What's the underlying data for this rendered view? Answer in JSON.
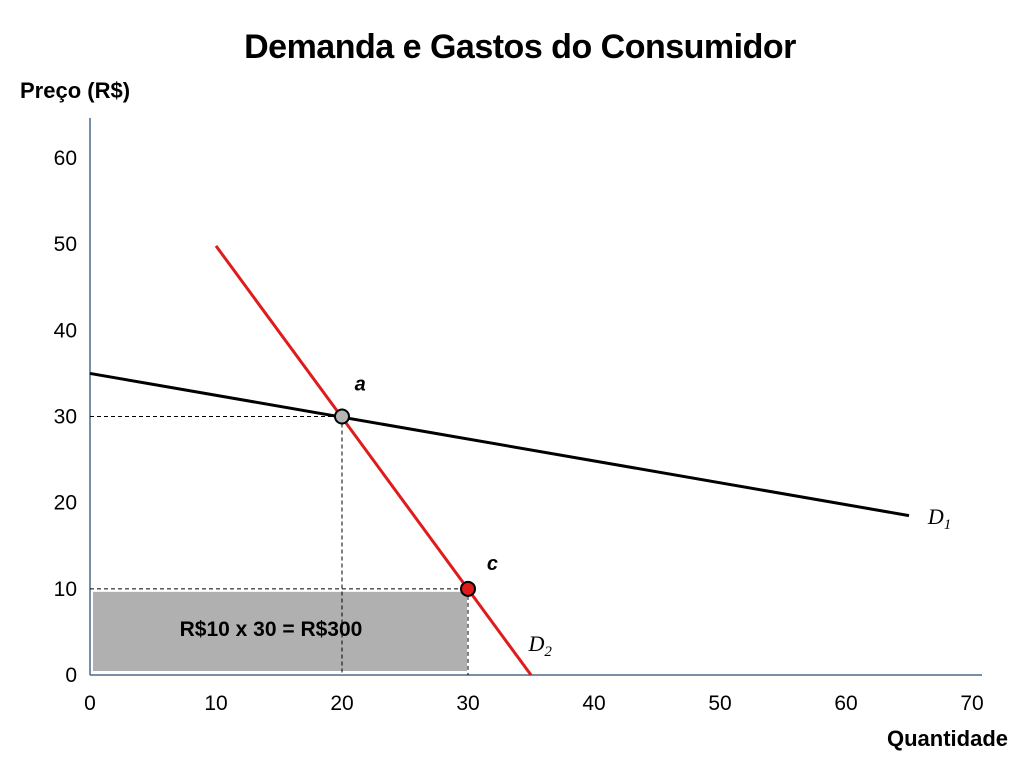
{
  "chart_data": {
    "type": "line",
    "title": "Demanda e Gastos do Consumidor",
    "ylabel": "Preço (R$)",
    "xlabel": "Quantidade",
    "xlim": [
      0,
      70
    ],
    "ylim": [
      0,
      62
    ],
    "x_ticks": [
      0,
      10,
      20,
      30,
      40,
      50,
      60,
      70
    ],
    "y_ticks": [
      0,
      10,
      20,
      30,
      40,
      50,
      60
    ],
    "grid": false,
    "series": [
      {
        "name": "D",
        "sub": "1",
        "color": "#000000",
        "points": [
          {
            "x": 0,
            "y": 35
          },
          {
            "x": 65,
            "y": 18.5
          }
        ],
        "label_at": {
          "x": 66.5,
          "y": 17.5
        }
      },
      {
        "name": "D",
        "sub": "2",
        "color": "#e01b1b",
        "points": [
          {
            "x": 10,
            "y": 49.8
          },
          {
            "x": 35,
            "y": 0
          }
        ],
        "label_at": {
          "x": 34.8,
          "y": 2.8
        }
      }
    ],
    "points": [
      {
        "label": "a",
        "x": 20,
        "y": 30,
        "fill": "#b5b5b5",
        "label_offset": {
          "x": 1.0,
          "y": 3.0
        }
      },
      {
        "label": "c",
        "x": 30,
        "y": 10,
        "fill": "#e01b1b",
        "label_offset": {
          "x": 1.5,
          "y": 2.2
        }
      }
    ],
    "shaded_area": {
      "x": [
        0,
        30
      ],
      "y": [
        0,
        10
      ],
      "color": "#b0b0b0",
      "label": "R$10 x 30 = R$300"
    }
  }
}
